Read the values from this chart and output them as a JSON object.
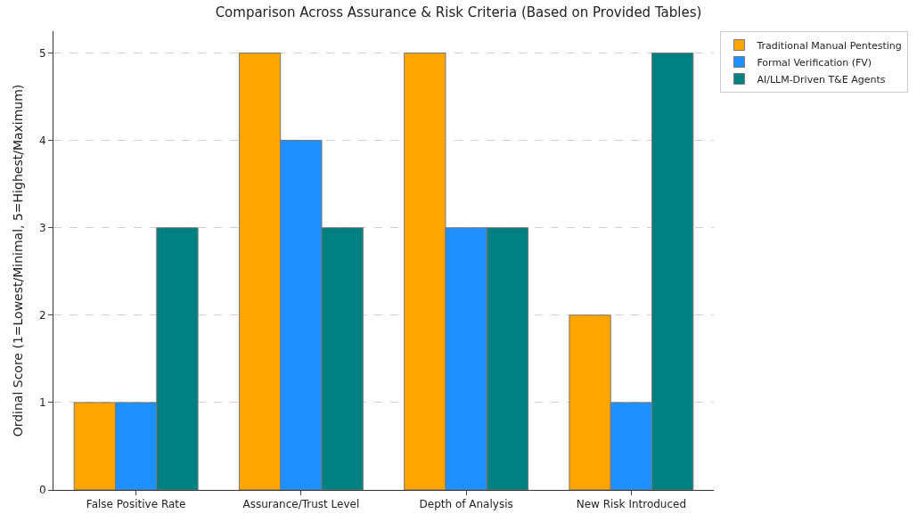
{
  "chart_data": {
    "type": "bar",
    "title": "Comparison Across Assurance & Risk Criteria (Based on Provided Tables)",
    "ylabel": "Ordinal Score (1=Lowest/Minimal, 5=Highest/Maximum)",
    "categories": [
      "False Positive Rate",
      "Assurance/Trust Level",
      "Depth of Analysis",
      "New Risk Introduced"
    ],
    "series": [
      {
        "name": "Traditional Manual Pentesting",
        "color": "#ffa500",
        "values": [
          1,
          5,
          5,
          2
        ]
      },
      {
        "name": "Formal Verification (FV)",
        "color": "#1e90ff",
        "values": [
          1,
          4,
          3,
          1
        ]
      },
      {
        "name": "AI/LLM-Driven T&E Agents",
        "color": "#008080",
        "values": [
          3,
          3,
          3,
          5
        ]
      }
    ],
    "ylim": [
      0,
      5.25
    ],
    "yticks": [
      0,
      1,
      2,
      3,
      4,
      5
    ],
    "grid": "y",
    "legend": "top right"
  }
}
